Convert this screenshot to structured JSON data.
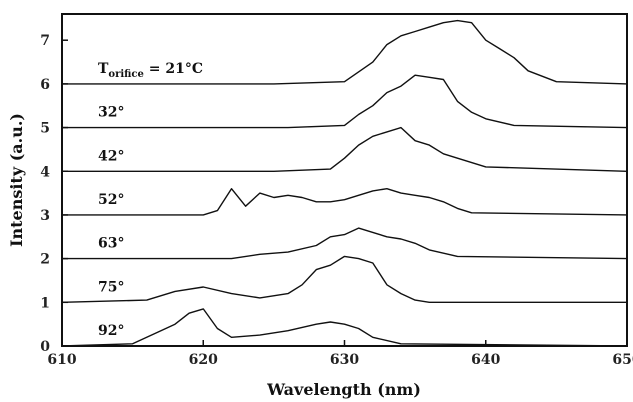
{
  "chart_data": {
    "type": "line",
    "title": "",
    "xlabel": "Wavelength (nm)",
    "ylabel": "Intensity (a.u.)",
    "xlim": [
      610,
      650
    ],
    "ylim": [
      0,
      7.6
    ],
    "xticks": [
      610,
      620,
      630,
      640,
      650
    ],
    "yticks": [
      0,
      1,
      2,
      3,
      4,
      5,
      6,
      7
    ],
    "grid": false,
    "series": [
      {
        "name": "Torifice = 21°C",
        "label_main": "T",
        "label_sub": "orifice",
        "label_rest": " = 21°C",
        "baseline": 6.0,
        "x": [
          610,
          625,
          630,
          632,
          633,
          634,
          635,
          636,
          637,
          638,
          639,
          640,
          641,
          642,
          643,
          645,
          650
        ],
        "y": [
          6.0,
          6.0,
          6.05,
          6.5,
          6.9,
          7.1,
          7.2,
          7.3,
          7.4,
          7.45,
          7.4,
          7.0,
          6.8,
          6.6,
          6.3,
          6.05,
          6.0
        ]
      },
      {
        "name": "32°",
        "label": "32°",
        "baseline": 5.0,
        "x": [
          610,
          626,
          630,
          631,
          632,
          633,
          634,
          635,
          636,
          637,
          638,
          639,
          640,
          642,
          650
        ],
        "y": [
          5.0,
          5.0,
          5.05,
          5.3,
          5.5,
          5.8,
          5.95,
          6.2,
          6.15,
          6.1,
          5.6,
          5.35,
          5.2,
          5.05,
          5.0
        ]
      },
      {
        "name": "42°",
        "label": "42°",
        "baseline": 4.0,
        "x": [
          610,
          625,
          629,
          630,
          631,
          632,
          633,
          634,
          635,
          636,
          637,
          638,
          640,
          650
        ],
        "y": [
          4.0,
          4.0,
          4.05,
          4.3,
          4.6,
          4.8,
          4.9,
          5.0,
          4.7,
          4.6,
          4.4,
          4.3,
          4.1,
          4.0
        ]
      },
      {
        "name": "52°",
        "label": "52°",
        "baseline": 3.0,
        "x": [
          610,
          620,
          621,
          622,
          623,
          624,
          625,
          626,
          627,
          628,
          629,
          630,
          631,
          632,
          633,
          634,
          635,
          636,
          637,
          638,
          639,
          650
        ],
        "y": [
          3.0,
          3.0,
          3.1,
          3.6,
          3.2,
          3.5,
          3.4,
          3.45,
          3.4,
          3.3,
          3.3,
          3.35,
          3.45,
          3.55,
          3.6,
          3.5,
          3.45,
          3.4,
          3.3,
          3.15,
          3.05,
          3.0
        ]
      },
      {
        "name": "63°",
        "label": "63°",
        "baseline": 2.0,
        "x": [
          610,
          622,
          624,
          626,
          628,
          629,
          630,
          631,
          632,
          633,
          634,
          635,
          636,
          638,
          650
        ],
        "y": [
          2.0,
          2.0,
          2.1,
          2.15,
          2.3,
          2.5,
          2.55,
          2.7,
          2.6,
          2.5,
          2.45,
          2.35,
          2.2,
          2.05,
          2.0
        ]
      },
      {
        "name": "75°",
        "label": "75°",
        "baseline": 1.0,
        "x": [
          610,
          616,
          618,
          620,
          622,
          624,
          626,
          627,
          628,
          629,
          630,
          631,
          632,
          633,
          634,
          635,
          636,
          650
        ],
        "y": [
          1.0,
          1.05,
          1.25,
          1.35,
          1.2,
          1.1,
          1.2,
          1.4,
          1.75,
          1.85,
          2.05,
          2.0,
          1.9,
          1.4,
          1.2,
          1.05,
          1.0,
          1.0
        ]
      },
      {
        "name": "92°",
        "label": "92°",
        "baseline": 0.0,
        "x": [
          610,
          615,
          617,
          618,
          619,
          620,
          621,
          622,
          624,
          626,
          628,
          629,
          630,
          631,
          632,
          634,
          650
        ],
        "y": [
          0.0,
          0.05,
          0.35,
          0.5,
          0.75,
          0.85,
          0.4,
          0.2,
          0.25,
          0.35,
          0.5,
          0.55,
          0.5,
          0.4,
          0.2,
          0.05,
          0.0
        ]
      }
    ]
  }
}
